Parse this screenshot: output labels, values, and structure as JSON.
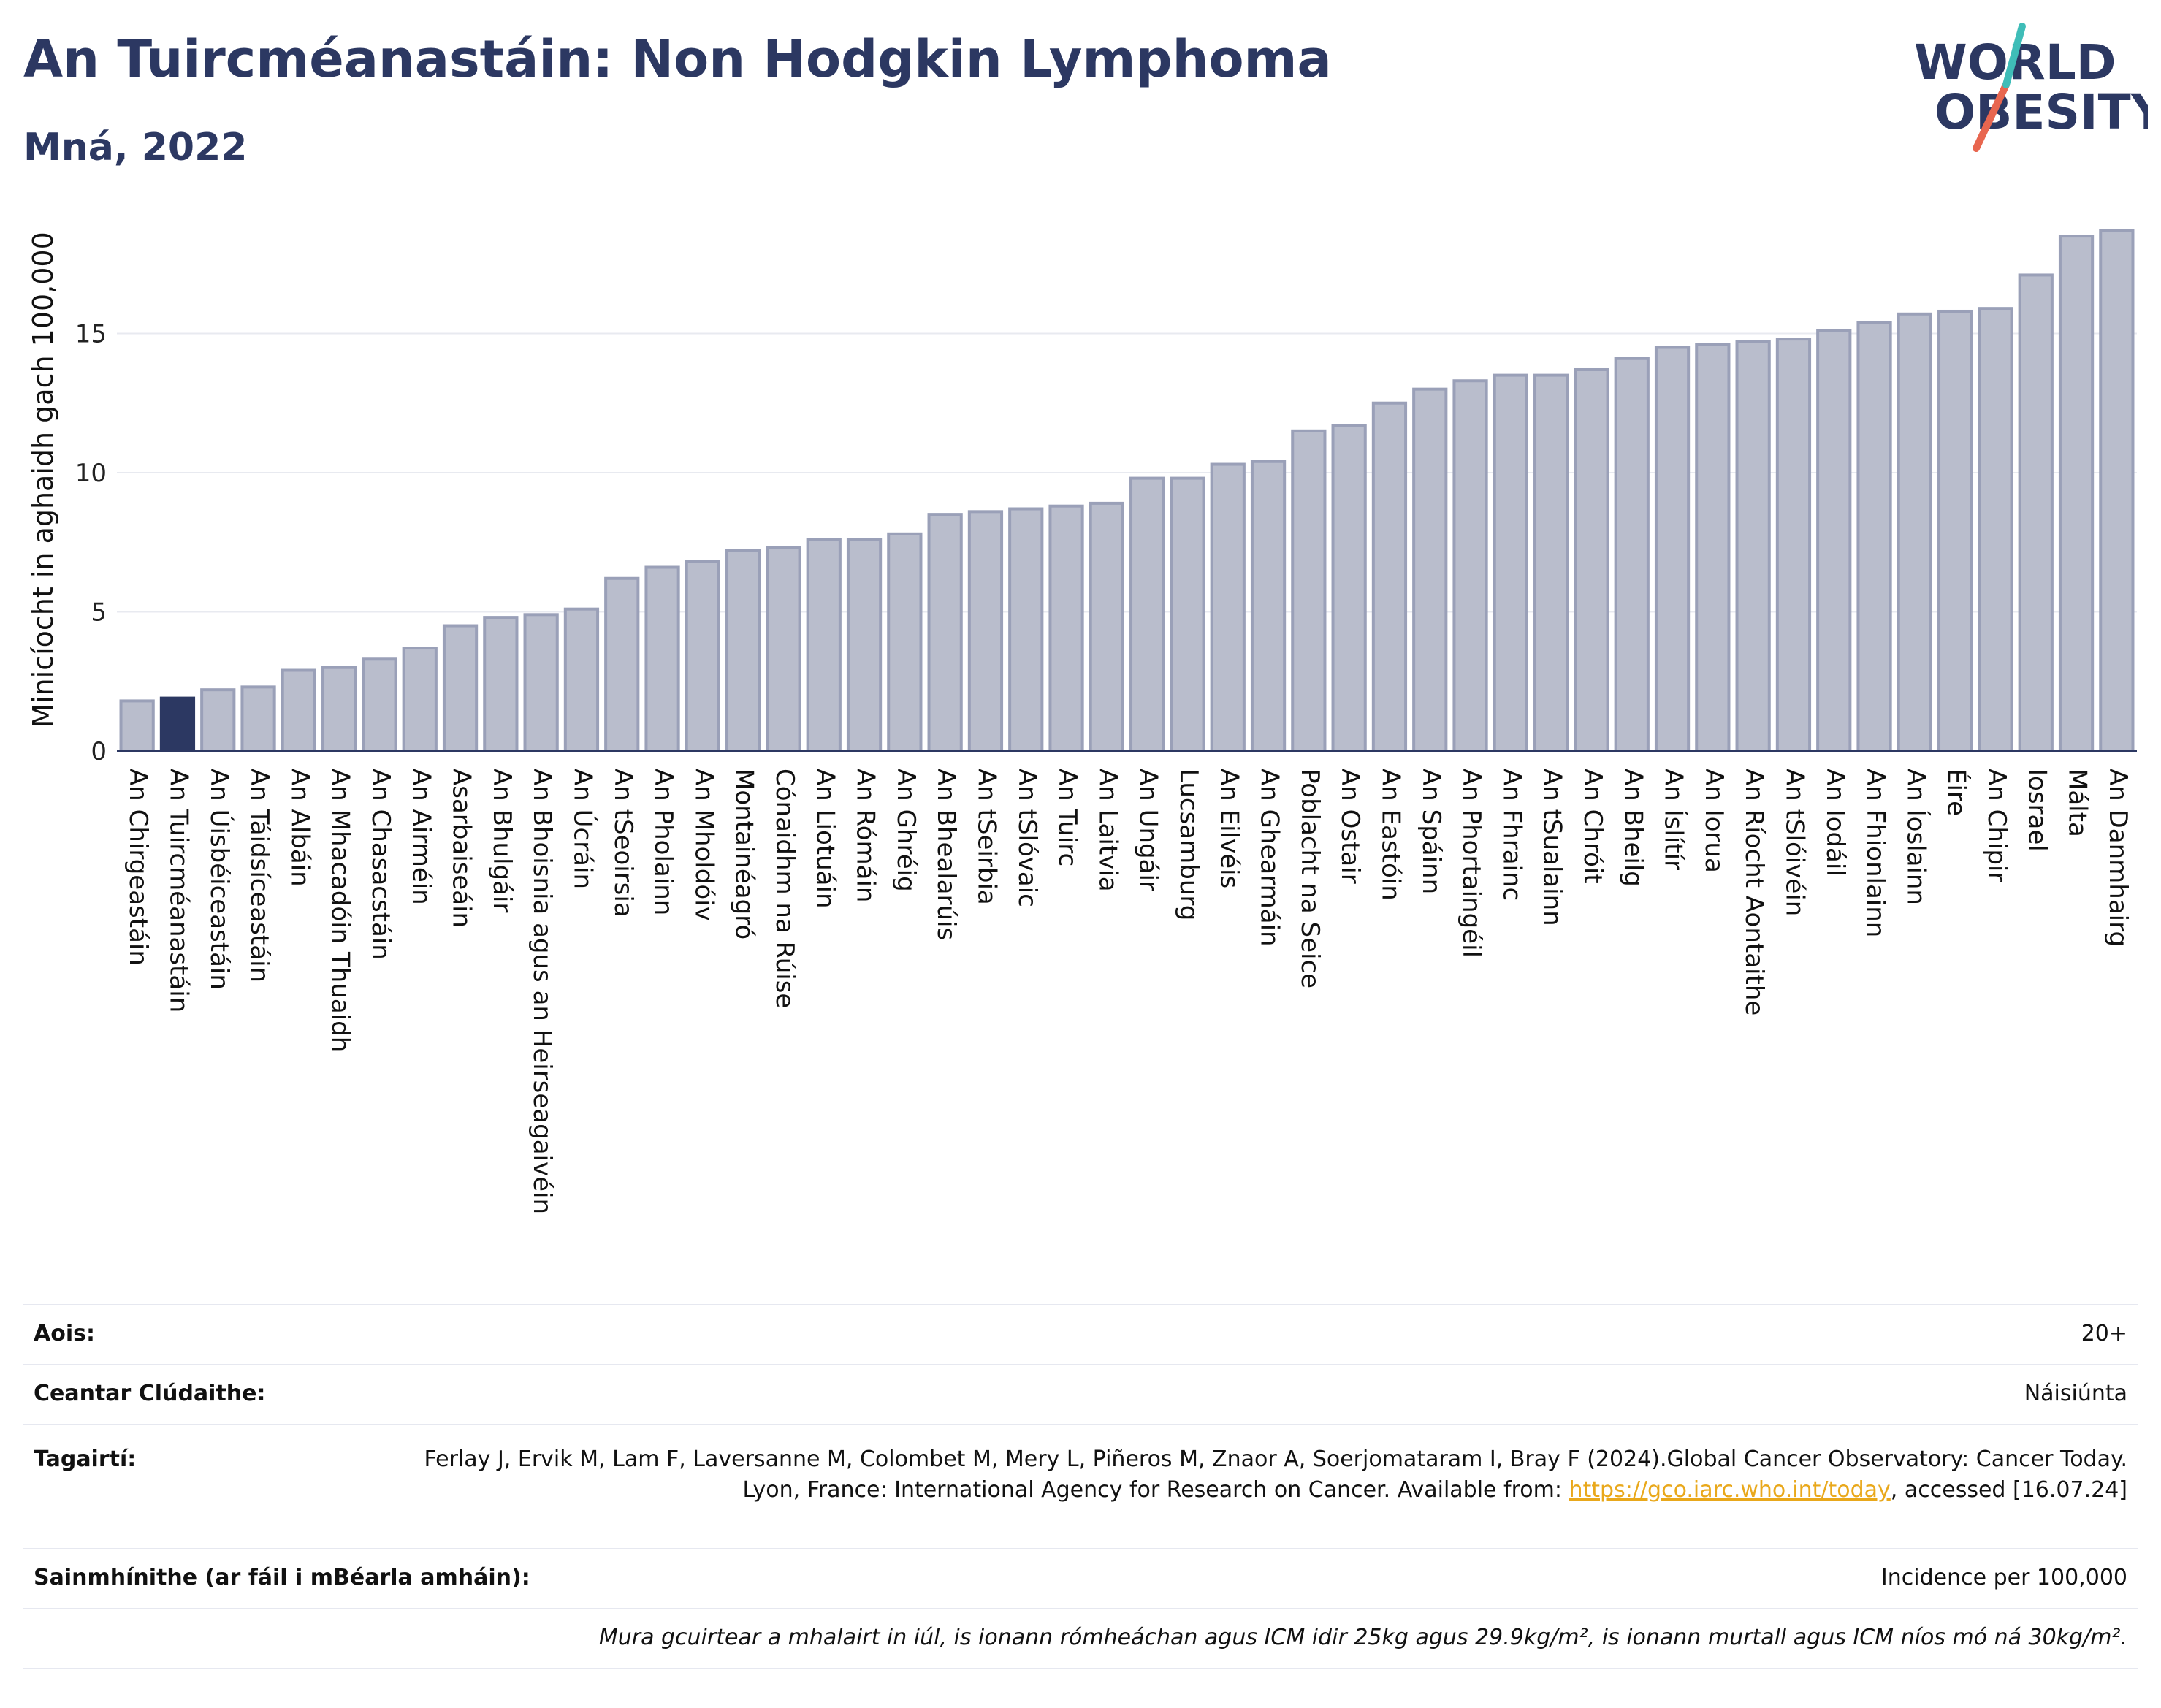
{
  "header": {
    "title": "An Tuircméanastáin: Non Hodgkin Lymphoma",
    "subtitle": "Mná, 2022"
  },
  "logo": {
    "line1": "WORLD",
    "line2": "OBESITY",
    "accent": "#e8664f",
    "accent2": "#3fbdb8"
  },
  "chart_data": {
    "type": "bar",
    "ylabel": "Minicíocht in aghaidh gach 100,000",
    "ylim": [
      0,
      19.5
    ],
    "yticks": [
      0,
      5,
      10,
      15
    ],
    "highlight": "An Tuircméanastáin",
    "colors": {
      "bar": "#b9bdcc",
      "bar_edge": "#9aa0b8",
      "highlight": "#2c3862"
    },
    "categories": [
      "An Chirgeastáin",
      "An Tuircméanastáin",
      "An Úisbéiceastáin",
      "An Táidsíceastáin",
      "An Albáin",
      "An Mhacadóin Thuaidh",
      "An Chasacstáin",
      "An Airméin",
      "Asarbaiseáin",
      "An Bhulgáir",
      "An Bhoisnia agus an Heirseagaivéin",
      "An Úcráin",
      "An tSeoirsia",
      "An Pholainn",
      "An Mholdóiv",
      "Montainéagró",
      "Cónaidhm na Rúise",
      "An Liotuáin",
      "An Rómáin",
      "An Ghréig",
      "An Bhealarúis",
      "An tSeirbia",
      "An tSlóvaic",
      "An Tuirc",
      "An Laitvia",
      "An Ungáir",
      "Lucsamburg",
      "An Eilvéis",
      "An Ghearmáin",
      "Poblacht na Seice",
      "An Ostair",
      "An Eastóin",
      "An Spáinn",
      "An Phortaingéil",
      "An Fhrainc",
      "An tSualainn",
      "An Chróit",
      "An Bheilg",
      "An Íslítír",
      "An Iorua",
      "An Ríocht Aontaithe",
      "An tSlóivéin",
      "An Iodáil",
      "An Fhionlainn",
      "An Íoslainn",
      "Éire",
      "An Chipir",
      "Iosrael",
      "Málta",
      "An Danmhairg"
    ],
    "values": [
      1.8,
      1.9,
      2.2,
      2.3,
      2.9,
      3.0,
      3.3,
      3.7,
      4.5,
      4.8,
      4.9,
      5.1,
      6.2,
      6.6,
      6.8,
      7.2,
      7.3,
      7.6,
      7.6,
      7.8,
      8.5,
      8.6,
      8.7,
      8.8,
      8.9,
      9.8,
      9.8,
      10.3,
      10.4,
      11.5,
      11.7,
      12.5,
      13.0,
      13.3,
      13.5,
      13.5,
      13.7,
      14.1,
      14.5,
      14.6,
      14.7,
      14.8,
      15.1,
      15.4,
      15.7,
      15.8,
      15.9,
      17.1,
      18.5,
      18.7
    ]
  },
  "info": {
    "age_label": "Aois:",
    "age_value": "20+",
    "area_label": "Ceantar Clúdaithe:",
    "area_value": "Náisiúnta",
    "ref_label": "Tagairtí:",
    "ref_text_1": "Ferlay J, Ervik M, Lam F, Laversanne M, Colombet M, Mery L, Piñeros M, Znaor A, Soerjomataram I, Bray F (2024).Global Cancer Observatory: Cancer Today. Lyon, France: International Agency for Research on Cancer. Available from: ",
    "ref_link": "https://gco.iarc.who.int/today",
    "ref_text_2": ", accessed [16.07.24]",
    "def_label": "Sainmhínithe (ar fáil i mBéarla amháin):",
    "def_value": "Incidence per 100,000",
    "note": "Mura gcuirtear a mhalairt in iúl, is ionann rómheáchan agus ICM idir 25kg agus 29.9kg/m², is ionann murtall agus ICM níos mó ná 30kg/m²."
  }
}
